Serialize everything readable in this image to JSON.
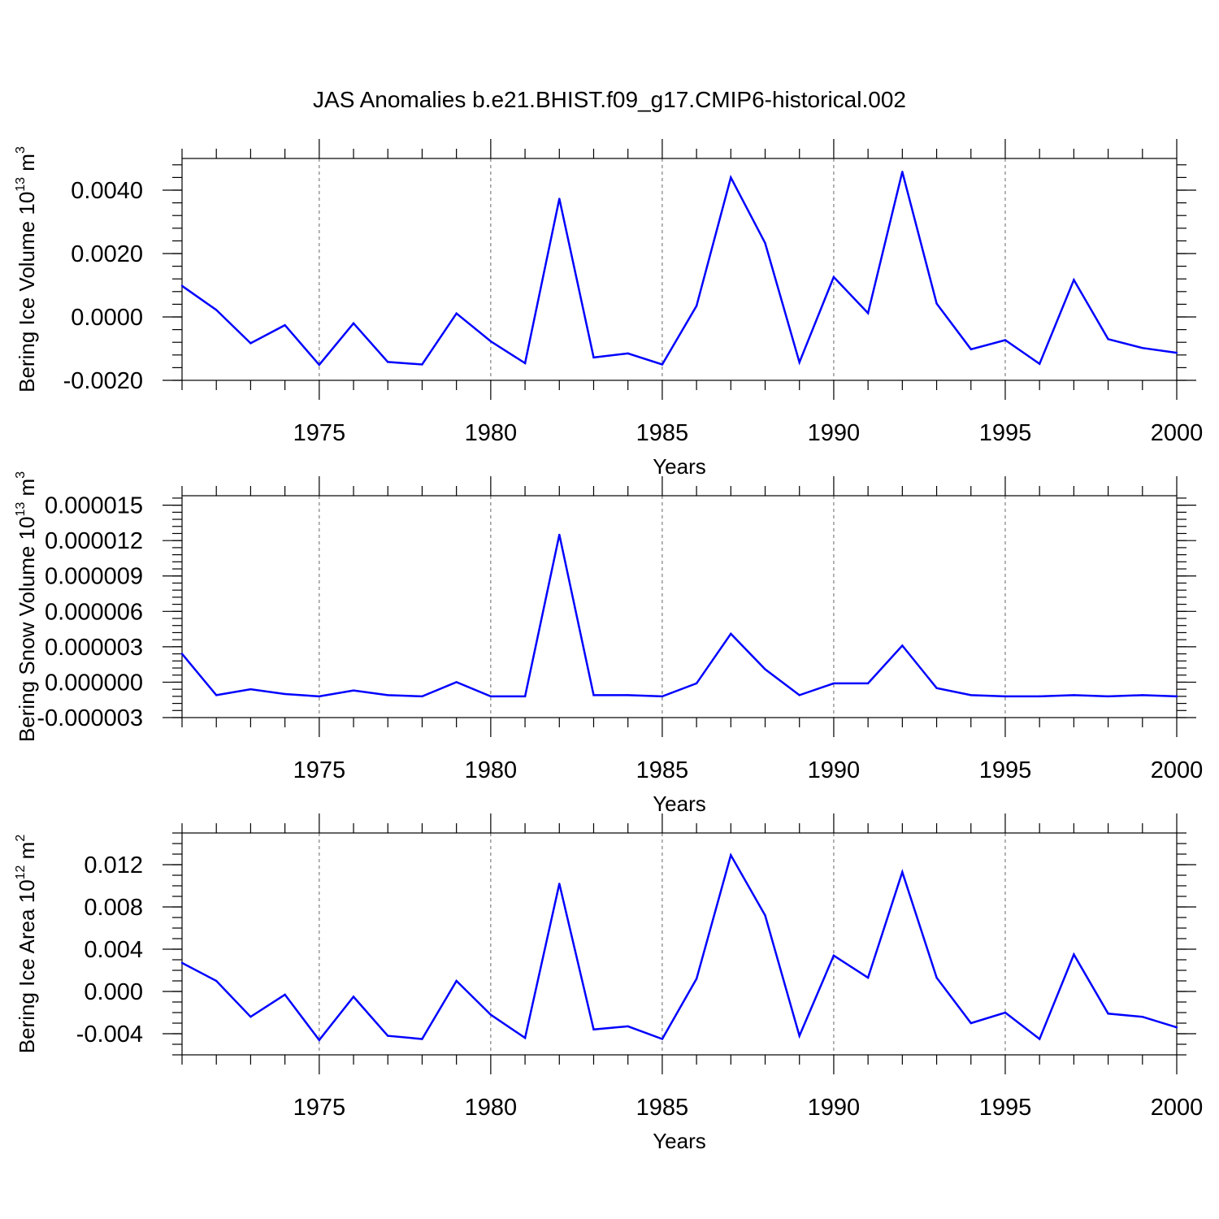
{
  "title": "JAS Anomalies b.e21.BHIST.f09_g17.CMIP6-historical.002",
  "colors": {
    "line": "#0000ff",
    "grid": "#666666"
  },
  "chart_data": [
    {
      "type": "line",
      "xlabel": "Years",
      "ylabel": {
        "base": "Bering Ice Volume 10",
        "sup1": "13",
        "unit": " m",
        "sup2": "3"
      },
      "xlim": [
        1971,
        2000
      ],
      "ylim": [
        -0.002,
        0.005
      ],
      "xticks_major": [
        1975,
        1980,
        1985,
        1990,
        1995,
        2000
      ],
      "xtick_labels": [
        "1975",
        "1980",
        "1985",
        "1990",
        "1995",
        "2000"
      ],
      "yticks_major": [
        -0.002,
        0.0,
        0.002,
        0.004
      ],
      "ytick_labels": [
        "-0.0020",
        "0.0000",
        "0.0020",
        "0.0040"
      ],
      "yticks_minor_step": 0.0004,
      "grid": "vertical dashed at major x ticks",
      "x": [
        1971,
        1972,
        1973,
        1974,
        1975,
        1976,
        1977,
        1978,
        1979,
        1980,
        1981,
        1982,
        1983,
        1984,
        1985,
        1986,
        1987,
        1988,
        1989,
        1990,
        1991,
        1992,
        1993,
        1994,
        1995,
        1996,
        1997,
        1998,
        1999,
        2000
      ],
      "series": [
        {
          "values": [
            0.00098,
            0.00022,
            -0.00083,
            -0.00026,
            -0.00151,
            -0.0002,
            -0.00142,
            -0.0015,
            0.00011,
            -0.00077,
            -0.00146,
            0.00373,
            -0.00128,
            -0.00115,
            -0.0015,
            0.00035,
            0.0044,
            0.00233,
            -0.00143,
            0.00126,
            0.00012,
            0.00458,
            0.00042,
            -0.00102,
            -0.00073,
            -0.00148,
            0.00117,
            -0.0007,
            -0.00098,
            -0.00113
          ]
        }
      ]
    },
    {
      "type": "line",
      "xlabel": "Years",
      "ylabel": {
        "base": "Bering Snow Volume 10",
        "sup1": "13",
        "unit": " m",
        "sup2": "3"
      },
      "xlim": [
        1971,
        2000
      ],
      "ylim": [
        -3e-06,
        1.58e-05
      ],
      "xticks_major": [
        1975,
        1980,
        1985,
        1990,
        1995,
        2000
      ],
      "xtick_labels": [
        "1975",
        "1980",
        "1985",
        "1990",
        "1995",
        "2000"
      ],
      "yticks_major": [
        -3e-06,
        0.0,
        3e-06,
        6e-06,
        9e-06,
        1.2e-05,
        1.5e-05
      ],
      "ytick_labels": [
        "-0.000003",
        "0.000000",
        "0.000003",
        "0.000006",
        "0.000009",
        "0.000012",
        "0.000015"
      ],
      "yticks_minor_step": 6e-07,
      "grid": "vertical dashed at major x ticks",
      "x": [
        1971,
        1972,
        1973,
        1974,
        1975,
        1976,
        1977,
        1978,
        1979,
        1980,
        1981,
        1982,
        1983,
        1984,
        1985,
        1986,
        1987,
        1988,
        1989,
        1990,
        1991,
        1992,
        1993,
        1994,
        1995,
        1996,
        1997,
        1998,
        1999,
        2000
      ],
      "series": [
        {
          "values": [
            2.4e-06,
            -1.1e-06,
            -6e-07,
            -1e-06,
            -1.2e-06,
            -7e-07,
            -1.1e-06,
            -1.2e-06,
            0.0,
            -1.2e-06,
            -1.2e-06,
            1.25e-05,
            -1.1e-06,
            -1.1e-06,
            -1.2e-06,
            -1e-07,
            4.1e-06,
            1.1e-06,
            -1.1e-06,
            -1e-07,
            -1e-07,
            3.1e-06,
            -5e-07,
            -1.1e-06,
            -1.2e-06,
            -1.2e-06,
            -1.1e-06,
            -1.2e-06,
            -1.1e-06,
            -1.2e-06
          ]
        }
      ]
    },
    {
      "type": "line",
      "xlabel": "Years",
      "ylabel": {
        "base": "Bering Ice Area 10",
        "sup1": "12",
        "unit": " m",
        "sup2": "2"
      },
      "xlim": [
        1971,
        2000
      ],
      "ylim": [
        -0.006,
        0.015
      ],
      "xticks_major": [
        1975,
        1980,
        1985,
        1990,
        1995,
        2000
      ],
      "xtick_labels": [
        "1975",
        "1980",
        "1985",
        "1990",
        "1995",
        "2000"
      ],
      "yticks_major": [
        -0.004,
        0.0,
        0.004,
        0.008,
        0.012
      ],
      "ytick_labels": [
        "-0.004",
        "0.000",
        "0.004",
        "0.008",
        "0.012"
      ],
      "yticks_minor_step": 0.001,
      "grid": "vertical dashed at major x ticks",
      "x": [
        1971,
        1972,
        1973,
        1974,
        1975,
        1976,
        1977,
        1978,
        1979,
        1980,
        1981,
        1982,
        1983,
        1984,
        1985,
        1986,
        1987,
        1988,
        1989,
        1990,
        1991,
        1992,
        1993,
        1994,
        1995,
        1996,
        1997,
        1998,
        1999,
        2000
      ],
      "series": [
        {
          "values": [
            0.0027,
            0.001,
            -0.0024,
            -0.0003,
            -0.0046,
            -0.0005,
            -0.0042,
            -0.0045,
            0.001,
            -0.0022,
            -0.0044,
            0.0102,
            -0.0036,
            -0.0033,
            -0.0045,
            0.0012,
            0.0129,
            0.0072,
            -0.0042,
            0.0034,
            0.0013,
            0.0113,
            0.0013,
            -0.003,
            -0.002,
            -0.0045,
            0.0035,
            -0.0021,
            -0.0024,
            -0.0034
          ]
        }
      ]
    }
  ]
}
